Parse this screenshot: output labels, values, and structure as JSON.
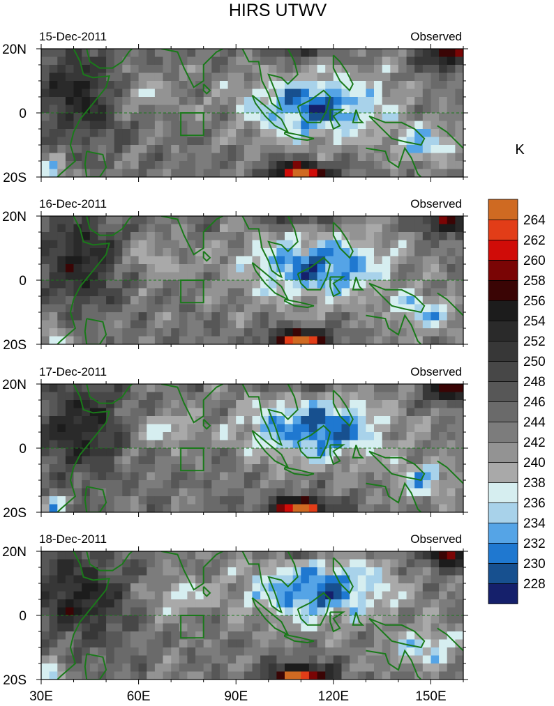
{
  "chart_data": {
    "type": "contour-map",
    "title": "HIRS UTWV",
    "colorbar": {
      "unit": "K",
      "levels": [
        228,
        230,
        232,
        234,
        236,
        238,
        240,
        242,
        244,
        246,
        248,
        250,
        252,
        254,
        256,
        258,
        260,
        262,
        264
      ],
      "colors": [
        "#15206b",
        "#17508f",
        "#1f78d0",
        "#55a4e6",
        "#a8d2ea",
        "#d6eef0",
        "#a9a9a9",
        "#939393",
        "#7c7c7c",
        "#6a6a6a",
        "#575757",
        "#474747",
        "#373737",
        "#2a2a2a",
        "#1c1c1c",
        "#3a0505",
        "#7a0505",
        "#d00c08",
        "#e23d18",
        "#cf6a22"
      ]
    },
    "lon_range": [
      30,
      160
    ],
    "lat_range": [
      -20,
      20
    ],
    "x_ticks": [
      {
        "value": 30,
        "label": "30E"
      },
      {
        "value": 60,
        "label": "60E"
      },
      {
        "value": 90,
        "label": "90E"
      },
      {
        "value": 120,
        "label": "120E"
      },
      {
        "value": 150,
        "label": "150E"
      }
    ],
    "y_ticks": [
      {
        "value": 20,
        "label": "20N"
      },
      {
        "value": 0,
        "label": "0"
      },
      {
        "value": -20,
        "label": "20S"
      }
    ],
    "box_region": {
      "lon": [
        73,
        80
      ],
      "lat": [
        -7,
        0
      ]
    },
    "panels": [
      {
        "date": "15-Dec-2011",
        "label": "Observed"
      },
      {
        "date": "16-Dec-2011",
        "label": "Observed"
      },
      {
        "date": "17-Dec-2011",
        "label": "Observed"
      },
      {
        "date": "18-Dec-2011",
        "label": "Observed"
      }
    ]
  }
}
